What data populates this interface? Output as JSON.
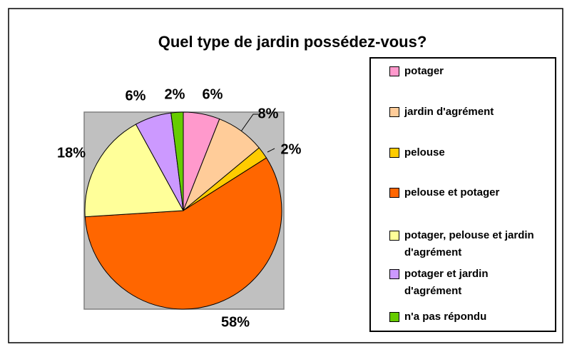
{
  "chart_data": {
    "type": "pie",
    "title": "Quel type de jardin possédez-vous?",
    "categories": [
      "potager",
      "jardin d'agrément",
      "pelouse",
      "pelouse et potager",
      "potager, pelouse et jardin d'agrément",
      "potager et jardin d'agrément",
      "n'a pas répondu"
    ],
    "values": [
      6,
      8,
      2,
      58,
      18,
      6,
      2
    ],
    "value_labels": [
      "6%",
      "8%",
      "2%",
      "58%",
      "18%",
      "6%",
      "2%"
    ],
    "colors": [
      "#ff99cc",
      "#ffcc99",
      "#ffcc00",
      "#ff6600",
      "#ffff99",
      "#cc99ff",
      "#66cc00"
    ],
    "legend": "right"
  }
}
